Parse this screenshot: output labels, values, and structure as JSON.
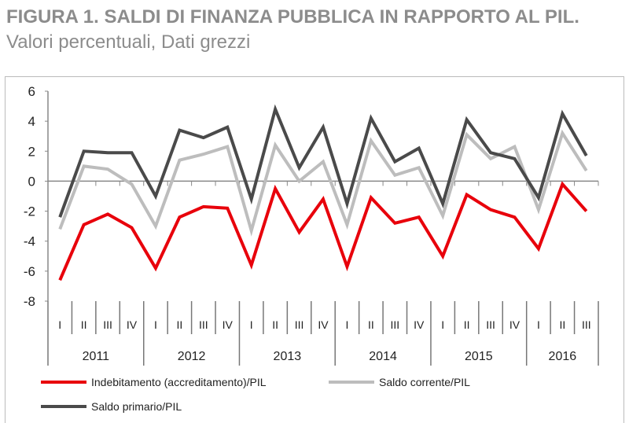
{
  "title": {
    "bold": "FIGURA 1. SALDI DI FINANZA PUBBLICA IN RAPPORTO AL PIL.",
    "rest": " Valori percentuali, Dati grezzi"
  },
  "chart_data": {
    "type": "line",
    "ylim": [
      -8,
      6
    ],
    "yticks": [
      6,
      4,
      2,
      0,
      -2,
      -4,
      -6,
      -8
    ],
    "grid": false,
    "legend_placement": "bottom",
    "quarters": [
      "I",
      "II",
      "III",
      "IV",
      "I",
      "II",
      "III",
      "IV",
      "I",
      "II",
      "III",
      "IV",
      "I",
      "II",
      "III",
      "IV",
      "I",
      "II",
      "III",
      "IV",
      "I",
      "II",
      "III"
    ],
    "years": [
      {
        "label": "2011",
        "n": 4
      },
      {
        "label": "2012",
        "n": 4
      },
      {
        "label": "2013",
        "n": 4
      },
      {
        "label": "2014",
        "n": 4
      },
      {
        "label": "2015",
        "n": 4
      },
      {
        "label": "2016",
        "n": 3
      }
    ],
    "series": [
      {
        "name": "Indebitamento (accreditamento)/PIL",
        "color": "#e8000b",
        "values": [
          -6.6,
          -2.9,
          -2.2,
          -3.1,
          -5.8,
          -2.4,
          -1.7,
          -1.8,
          -5.6,
          -0.5,
          -3.4,
          -1.2,
          -5.7,
          -1.1,
          -2.8,
          -2.4,
          -5.0,
          -0.9,
          -1.9,
          -2.4,
          -4.5,
          -0.2,
          -2.0
        ]
      },
      {
        "name": "Saldo corrente/PIL",
        "color": "#bdbdbd",
        "values": [
          -3.2,
          1.0,
          0.8,
          -0.2,
          -3.0,
          1.4,
          1.8,
          2.3,
          -3.3,
          2.4,
          0.0,
          1.3,
          -2.9,
          2.7,
          0.4,
          0.9,
          -2.3,
          3.1,
          1.5,
          2.3,
          -1.9,
          3.2,
          0.7
        ]
      },
      {
        "name": "Saldo primario/PIL",
        "color": "#4a4a4a",
        "values": [
          -2.4,
          2.0,
          1.9,
          1.9,
          -1.0,
          3.4,
          2.9,
          3.6,
          -1.2,
          4.8,
          0.9,
          3.6,
          -1.5,
          4.2,
          1.3,
          2.2,
          -1.5,
          4.1,
          1.9,
          1.5,
          -1.1,
          4.5,
          1.7
        ]
      }
    ]
  }
}
